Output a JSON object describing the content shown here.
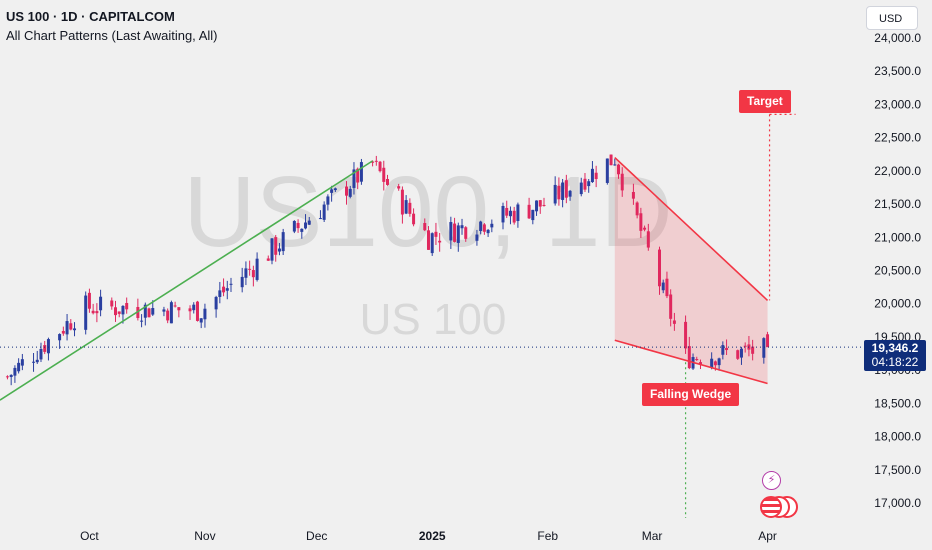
{
  "header": {
    "title": "US 100 · 1D · CAPITALCOM",
    "indicator": "All Chart Patterns (Last Awaiting, All)"
  },
  "currency_button": "USD",
  "watermark": {
    "symbol": "US100, 1D",
    "name": "US 100"
  },
  "price_badge": {
    "price": "19,346.2",
    "countdown": "04:18:22"
  },
  "pattern_labels": {
    "target": "Target",
    "wedge": "Falling Wedge"
  },
  "icons": {
    "event": "lightning-icon",
    "flags": "us-flag-icon"
  },
  "colors": {
    "up": "#2a3fa0",
    "down": "#e0285e",
    "trendline": "#4caf50",
    "pattern": "#f23645",
    "badge": "#0f2d7a"
  },
  "chart_data": {
    "type": "candlestick",
    "y_axis": {
      "ticks": [
        17000,
        17500,
        18000,
        18500,
        19000,
        19500,
        20000,
        20500,
        21000,
        21500,
        22000,
        22500,
        23000,
        23500,
        24000
      ],
      "tick_labels": [
        "17,000.0",
        "17,500.0",
        "18,000.0",
        "18,500.0",
        "19,000.0",
        "19,500.0",
        "20,000.0",
        "20,500.0",
        "21,000.0",
        "21,500.0",
        "22,000.0",
        "22,500.0",
        "23,000.0",
        "23,500.0",
        "24,000.0"
      ],
      "range": [
        16700,
        24300
      ]
    },
    "x_axis": {
      "labels": [
        {
          "text": "Oct",
          "date": "2024-10-01"
        },
        {
          "text": "Nov",
          "date": "2024-11-01"
        },
        {
          "text": "Dec",
          "date": "2024-12-01"
        },
        {
          "text": "2025",
          "date": "2025-01-01"
        },
        {
          "text": "Feb",
          "date": "2025-02-01"
        },
        {
          "text": "Mar",
          "date": "2025-03-01"
        },
        {
          "text": "Apr",
          "date": "2025-04-01"
        }
      ],
      "range": [
        "2024-09-07",
        "2025-04-03"
      ]
    },
    "current_price": 19346.2,
    "closes_monthly": [
      {
        "date": "2024-09-09",
        "close": 18900
      },
      {
        "date": "2024-09-30",
        "close": 19950
      },
      {
        "date": "2024-10-31",
        "close": 19900
      },
      {
        "date": "2024-12-16",
        "close": 22100
      },
      {
        "date": "2024-12-31",
        "close": 21000
      },
      {
        "date": "2025-01-31",
        "close": 21500
      },
      {
        "date": "2025-02-19",
        "close": 22200
      },
      {
        "date": "2025-03-10",
        "close": 19200
      },
      {
        "date": "2025-03-31",
        "close": 19300
      }
    ],
    "trendline": [
      {
        "date": "2024-09-07",
        "price": 18550
      },
      {
        "date": "2024-12-16",
        "price": 22150
      }
    ],
    "falling_wedge": {
      "upper": [
        {
          "date": "2025-02-19",
          "price": 22200
        },
        {
          "date": "2025-04-01",
          "price": 20050
        }
      ],
      "lower": [
        {
          "date": "2025-02-19",
          "price": 19450
        },
        {
          "date": "2025-04-01",
          "price": 18800
        }
      ],
      "target": 22850
    }
  }
}
